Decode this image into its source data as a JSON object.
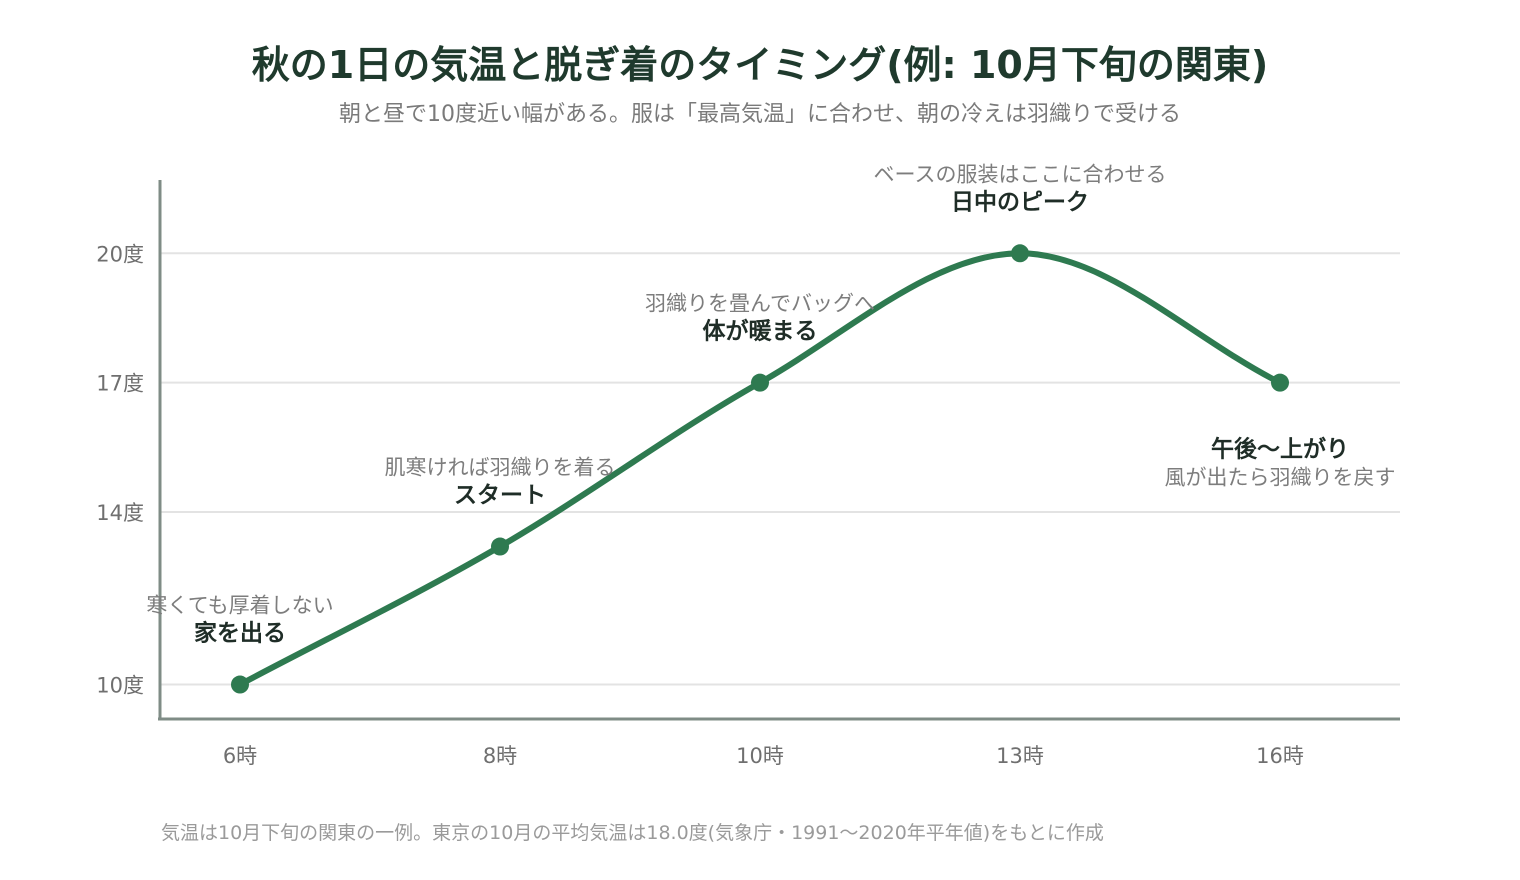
{
  "title": "秋の1日の気温と脱ぎ着のタイミング(例: 10月下旬の関東)",
  "subtitle": "朝と昼で10度近い幅がある。服は「最高気温」に合わせ、朝の冷えは羽織りで受ける",
  "footnote": "気温は10月下旬の関東の一例。東京の10月の平均気温は18.0度(気象庁・1991〜2020年平年値)をもとに作成",
  "colors": {
    "line": "#2e7a50",
    "axis": "#7f8c86",
    "grid": "#e3e3e3"
  },
  "chart_data": {
    "type": "line",
    "title": "秋の1日の気温と脱ぎ着のタイミング(例: 10月下旬の関東)",
    "subtitle": "朝と昼で10度近い幅がある。服は「最高気温」に合わせ、朝の冷えは羽織りで受ける",
    "xlabel": "",
    "ylabel": "",
    "categories": [
      "6時",
      "8時",
      "10時",
      "13時",
      "16時"
    ],
    "values": [
      10,
      13.2,
      17,
      20,
      17
    ],
    "y_ticks": [
      10,
      14,
      17,
      20
    ],
    "y_tick_labels": [
      "10度",
      "14度",
      "17度",
      "20度"
    ],
    "ylim": [
      9.2,
      21.7
    ],
    "grid": true,
    "annotations": [
      {
        "category": "6時",
        "title": "家を出る",
        "note": "寒くても厚着しない",
        "position": "above"
      },
      {
        "category": "8時",
        "title": "スタート",
        "note": "肌寒ければ羽織りを着る",
        "position": "above"
      },
      {
        "category": "10時",
        "title": "体が暖まる",
        "note": "羽織りを畳んでバッグへ",
        "position": "above"
      },
      {
        "category": "13時",
        "title": "日中のピーク",
        "note": "ベースの服装はここに合わせる",
        "position": "above"
      },
      {
        "category": "16時",
        "title": "午後〜上がり",
        "note": "風が出たら羽織りを戻す",
        "position": "below"
      }
    ]
  }
}
